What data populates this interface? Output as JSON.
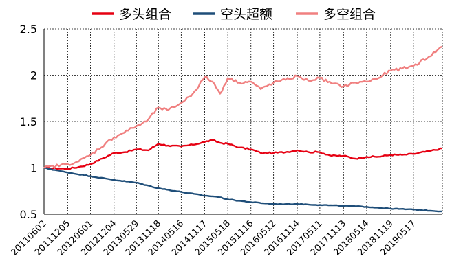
{
  "chart_data": {
    "type": "line",
    "title": "",
    "xlabel": "",
    "ylabel": "",
    "ylim": [
      0.5,
      2.5
    ],
    "yticks": [
      0.5,
      1,
      1.5,
      2,
      2.5
    ],
    "ytick_labels": [
      "0.5",
      "1",
      "1.5",
      "2",
      "2.5"
    ],
    "grid": true,
    "legend_position": "top-center",
    "x_start": "20110602",
    "x_end": "20191231",
    "x_ticks": [
      "20110602",
      "20111205",
      "20120601",
      "20121204",
      "20130529",
      "20131118",
      "20140516",
      "20141117",
      "20150518",
      "20151116",
      "20160512",
      "20161114",
      "20170511",
      "20171113",
      "20180514",
      "20181119",
      "20190517"
    ],
    "series": [
      {
        "name": "多头组合",
        "color": "#e60012",
        "points": [
          [
            "20110602",
            1.0
          ],
          [
            "20111205",
            0.99
          ],
          [
            "20120301",
            1.01
          ],
          [
            "20120601",
            1.04
          ],
          [
            "20120901",
            1.1
          ],
          [
            "20121204",
            1.16
          ],
          [
            "20130301",
            1.17
          ],
          [
            "20130529",
            1.2
          ],
          [
            "20130901",
            1.19
          ],
          [
            "20131118",
            1.26
          ],
          [
            "20140201",
            1.24
          ],
          [
            "20140516",
            1.23
          ],
          [
            "20140816",
            1.25
          ],
          [
            "20141117",
            1.28
          ],
          [
            "20150118",
            1.3
          ],
          [
            "20150318",
            1.27
          ],
          [
            "20150518",
            1.26
          ],
          [
            "20150818",
            1.22
          ],
          [
            "20151116",
            1.2
          ],
          [
            "20160201",
            1.16
          ],
          [
            "20160512",
            1.16
          ],
          [
            "20160815",
            1.17
          ],
          [
            "20161114",
            1.19
          ],
          [
            "20170211",
            1.17
          ],
          [
            "20170511",
            1.17
          ],
          [
            "20170812",
            1.13
          ],
          [
            "20171113",
            1.13
          ],
          [
            "20180214",
            1.1
          ],
          [
            "20180514",
            1.12
          ],
          [
            "20180816",
            1.12
          ],
          [
            "20181119",
            1.14
          ],
          [
            "20190217",
            1.14
          ],
          [
            "20190517",
            1.15
          ],
          [
            "20190917",
            1.18
          ],
          [
            "20191231",
            1.21
          ]
        ]
      },
      {
        "name": "空头超额",
        "color": "#1f4e79",
        "points": [
          [
            "20110602",
            1.0
          ],
          [
            "20111205",
            0.95
          ],
          [
            "20120601",
            0.91
          ],
          [
            "20121204",
            0.87
          ],
          [
            "20130529",
            0.84
          ],
          [
            "20131118",
            0.78
          ],
          [
            "20140516",
            0.74
          ],
          [
            "20141117",
            0.7
          ],
          [
            "20150218",
            0.69
          ],
          [
            "20150518",
            0.66
          ],
          [
            "20151116",
            0.63
          ],
          [
            "20160512",
            0.61
          ],
          [
            "20161114",
            0.61
          ],
          [
            "20170511",
            0.6
          ],
          [
            "20171113",
            0.59
          ],
          [
            "20180514",
            0.58
          ],
          [
            "20181119",
            0.56
          ],
          [
            "20190517",
            0.55
          ],
          [
            "20191231",
            0.53
          ]
        ]
      },
      {
        "name": "多空组合",
        "color": "#f08080",
        "points": [
          [
            "20110602",
            1.0
          ],
          [
            "20111205",
            1.04
          ],
          [
            "20120301",
            1.07
          ],
          [
            "20120601",
            1.14
          ],
          [
            "20121204",
            1.33
          ],
          [
            "20130529",
            1.45
          ],
          [
            "20130815",
            1.5
          ],
          [
            "20131118",
            1.65
          ],
          [
            "20140201",
            1.62
          ],
          [
            "20140516",
            1.7
          ],
          [
            "20140816",
            1.8
          ],
          [
            "20141117",
            1.98
          ],
          [
            "20150118",
            1.93
          ],
          [
            "20150318",
            1.8
          ],
          [
            "20150518",
            1.97
          ],
          [
            "20150818",
            1.92
          ],
          [
            "20151116",
            1.93
          ],
          [
            "20160201",
            1.85
          ],
          [
            "20160512",
            1.92
          ],
          [
            "20160815",
            1.95
          ],
          [
            "20161114",
            1.99
          ],
          [
            "20170211",
            1.94
          ],
          [
            "20170511",
            1.97
          ],
          [
            "20170812",
            1.91
          ],
          [
            "20171113",
            1.88
          ],
          [
            "20180214",
            1.92
          ],
          [
            "20180514",
            1.93
          ],
          [
            "20180816",
            1.97
          ],
          [
            "20181119",
            2.05
          ],
          [
            "20190217",
            2.07
          ],
          [
            "20190517",
            2.1
          ],
          [
            "20190917",
            2.2
          ],
          [
            "20191231",
            2.31
          ]
        ]
      }
    ]
  }
}
